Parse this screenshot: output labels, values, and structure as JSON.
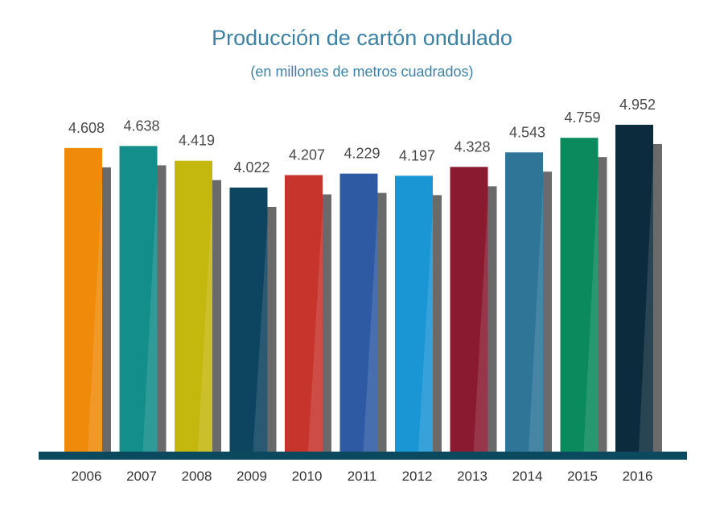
{
  "chart_data": {
    "type": "bar",
    "title": "Producción de cartón ondulado",
    "subtitle": "(en millones de metros cuadrados)",
    "categories": [
      "2006",
      "2007",
      "2008",
      "2009",
      "2010",
      "2011",
      "2012",
      "2013",
      "2014",
      "2015",
      "2016"
    ],
    "values": [
      4608,
      4638,
      4419,
      4022,
      4207,
      4229,
      4197,
      4328,
      4543,
      4759,
      4952
    ],
    "value_labels": [
      "4.608",
      "4.638",
      "4.419",
      "4.022",
      "4.207",
      "4.229",
      "4.197",
      "4.328",
      "4.543",
      "4.759",
      "4.952"
    ],
    "colors": [
      "#f08a0b",
      "#138e8a",
      "#c4b80f",
      "#0d4460",
      "#c7342c",
      "#2e5aa3",
      "#1b96d4",
      "#891a30",
      "#2e7598",
      "#0b8a5e",
      "#0c2b3c"
    ],
    "shadow_color": "#6a6a6a",
    "baseline_color": "#0b4a5e",
    "xlabel": "",
    "ylabel": "",
    "legend": "none",
    "grid": false
  }
}
